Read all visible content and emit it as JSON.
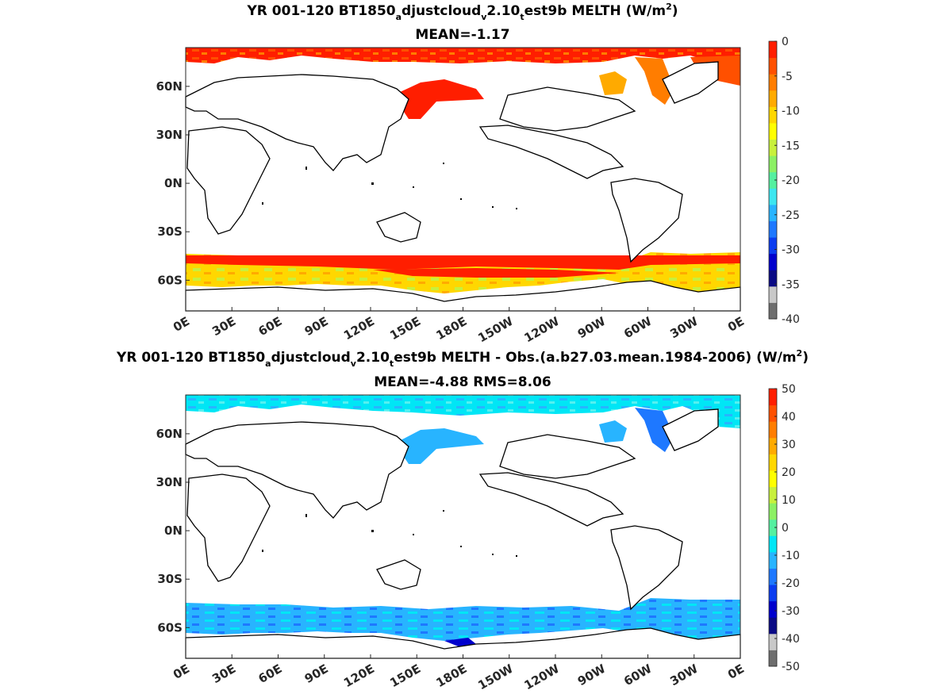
{
  "chart_data": [
    {
      "type": "heatmap",
      "title_parts": [
        "YR 001-120 BT1850",
        "a",
        "djustcloud",
        "v",
        "2.10",
        "t",
        "est9b  MELTH (W/m",
        "2",
        ")"
      ],
      "subtitle": "MEAN=-1.17",
      "x_ticks": [
        "0E",
        "30E",
        "60E",
        "90E",
        "120E",
        "150E",
        "180E",
        "150W",
        "120W",
        "90W",
        "60W",
        "30W",
        "0E"
      ],
      "y_ticks": [
        "60N",
        "30N",
        "0N",
        "30S",
        "60S"
      ],
      "xlim": [
        0,
        360
      ],
      "ylim": [
        -79,
        84
      ],
      "colorbar": {
        "ticks": [
          "0",
          "-5",
          "-10",
          "-15",
          "-20",
          "-25",
          "-30",
          "-35",
          "-40"
        ],
        "range": [
          -40,
          0
        ],
        "colors": [
          "#6e6e6e",
          "#c8c8c8",
          "#0a0a85",
          "#0000cd",
          "#0a3cf0",
          "#1e78ff",
          "#28b4ff",
          "#3ce6f0",
          "#55f0a0",
          "#8cf064",
          "#c8f03c",
          "#ffff00",
          "#ffd700",
          "#ffaa00",
          "#ff7d00",
          "#ff5000",
          "#ff1e00"
        ]
      },
      "regions": [
        {
          "name": "arctic",
          "lat": [
            62,
            84
          ],
          "value": -3
        },
        {
          "name": "southern-ocean",
          "lat": [
            -72,
            -50
          ],
          "value": -8
        }
      ]
    },
    {
      "type": "heatmap",
      "title_parts": [
        "YR 001-120 BT1850",
        "a",
        "djustcloud",
        "v",
        "2.10",
        "t",
        "est9b MELTH - Obs.(a.b27.03.mean.1984-2006) (W/m",
        "2",
        ")"
      ],
      "subtitle": "MEAN=-4.88 RMS=8.06",
      "x_ticks": [
        "0E",
        "30E",
        "60E",
        "90E",
        "120E",
        "150E",
        "180E",
        "150W",
        "120W",
        "90W",
        "60W",
        "30W",
        "0E"
      ],
      "y_ticks": [
        "60N",
        "30N",
        "0N",
        "30S",
        "60S"
      ],
      "xlim": [
        0,
        360
      ],
      "ylim": [
        -79,
        84
      ],
      "colorbar": {
        "ticks": [
          "50",
          "40",
          "30",
          "20",
          "10",
          "0",
          "-10",
          "-20",
          "-30",
          "-40",
          "-50"
        ],
        "range": [
          -50,
          50
        ],
        "colors": [
          "#6e6e6e",
          "#c8c8c8",
          "#0a0a85",
          "#0000cd",
          "#0a3cf0",
          "#1e78ff",
          "#28b4ff",
          "#00e6f5",
          "#55f0a0",
          "#8cf064",
          "#c8f03c",
          "#ffff00",
          "#ffd700",
          "#ffaa00",
          "#ff7d00",
          "#ff5000",
          "#ff1e00"
        ]
      },
      "regions": [
        {
          "name": "arctic",
          "lat": [
            62,
            84
          ],
          "value": -6
        },
        {
          "name": "southern-ocean",
          "lat": [
            -72,
            -50
          ],
          "value": -8
        }
      ]
    }
  ]
}
